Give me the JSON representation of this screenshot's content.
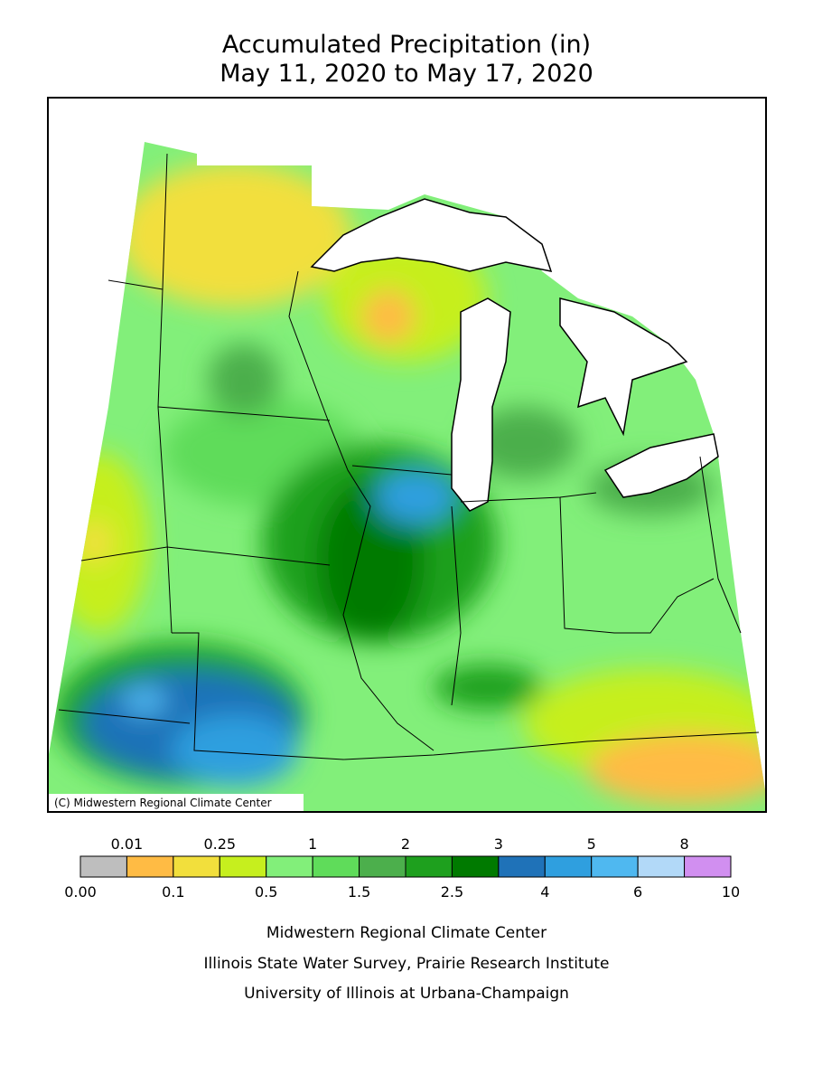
{
  "title": [
    "Accumulated Precipitation (in)",
    "May 11, 2020 to May 17, 2020"
  ],
  "map": {
    "credit": "(C) Midwestern Regional Climate Center"
  },
  "legend": {
    "labels": [
      "0.00",
      "0.01",
      "0.1",
      "0.25",
      "0.5",
      "1",
      "1.5",
      "2",
      "2.5",
      "3",
      "4",
      "5",
      "6",
      "8",
      "10"
    ],
    "colors": [
      "#bebebe",
      "#ffbb44",
      "#f2df3c",
      "#c6ef1e",
      "#82ef7a",
      "#5fdc5a",
      "#4caf4c",
      "#1ea01e",
      "#007a00",
      "#1f72b8",
      "#2f9fdf",
      "#4fb8f0",
      "#b2d9f8",
      "#d18ff0"
    ]
  },
  "footer": [
    "Midwestern Regional Climate Center",
    "Illinois State Water Survey, Prairie Research Institute",
    "University of Illinois at Urbana-Champaign"
  ]
}
